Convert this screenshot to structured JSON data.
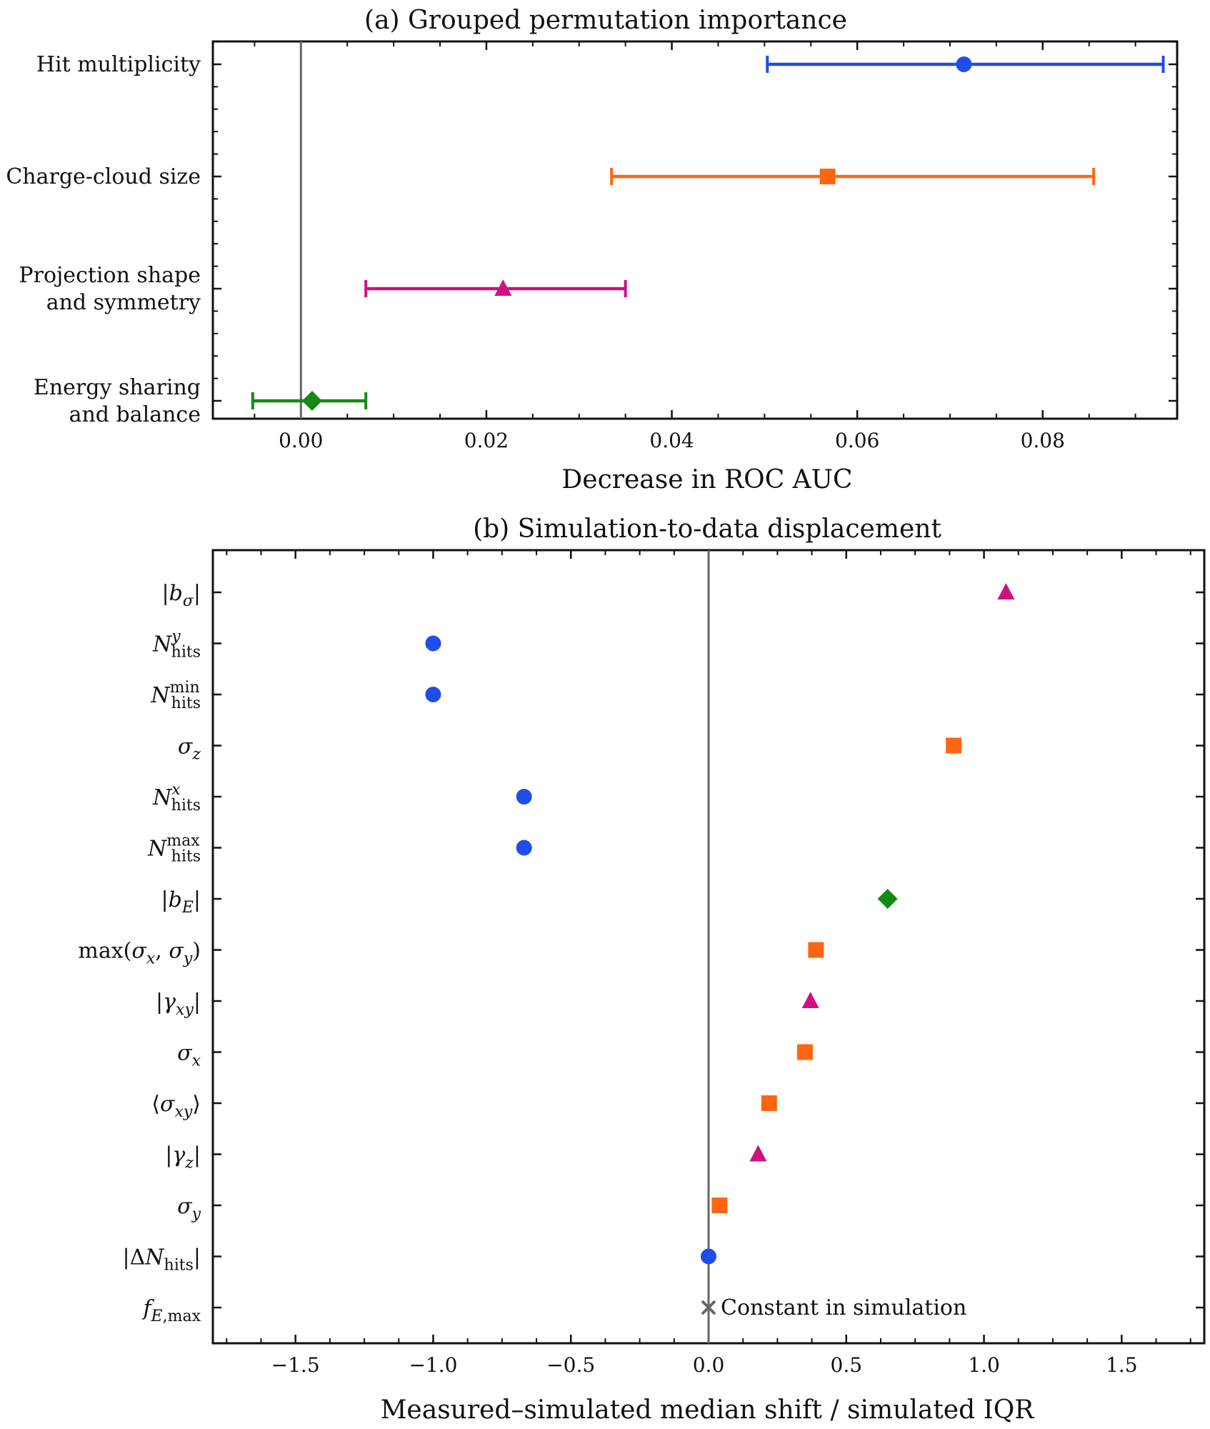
{
  "colors": {
    "hit_multiplicity": "#1f4de8",
    "charge_cloud_size": "#ff6611",
    "projection_shape": "#d1107f",
    "energy_sharing": "#148a14",
    "constant": "#666666",
    "zero_line": "#666666"
  },
  "chart_data": [
    {
      "type": "scatter",
      "title": "(a) Grouped permutation importance",
      "xlabel": "Decrease in ROC AUC",
      "ylabel": "",
      "xlim": [
        -0.0095,
        0.0945
      ],
      "xticks": [
        "0.00",
        "0.02",
        "0.04",
        "0.06",
        "0.08"
      ],
      "xtick_values": [
        0.0,
        0.02,
        0.04,
        0.06,
        0.08
      ],
      "grid": false,
      "legend": "none",
      "categories": [
        [
          "Hit multiplicity"
        ],
        [
          "Charge-cloud size"
        ],
        [
          "Projection shape",
          "and symmetry"
        ],
        [
          "Energy sharing",
          "and balance"
        ]
      ],
      "series": [
        {
          "group": "hit_multiplicity",
          "marker": "circle",
          "value": 0.0715,
          "err_low": 0.0503,
          "err_high": 0.093
        },
        {
          "group": "charge_cloud_size",
          "marker": "square",
          "value": 0.0568,
          "err_low": 0.0335,
          "err_high": 0.0855
        },
        {
          "group": "projection_shape",
          "marker": "triangle",
          "value": 0.0218,
          "err_low": 0.007,
          "err_high": 0.035
        },
        {
          "group": "energy_sharing",
          "marker": "diamond",
          "value": 0.0012,
          "err_low": -0.0052,
          "err_high": 0.007
        }
      ]
    },
    {
      "type": "scatter",
      "title": "(b) Simulation-to-data displacement",
      "xlabel": "Measured–simulated median shift / simulated IQR",
      "ylabel": "",
      "xlim": [
        -1.8,
        1.8
      ],
      "xticks": [
        "−1.5",
        "−1.0",
        "−0.5",
        "0.0",
        "0.5",
        "1.0",
        "1.5"
      ],
      "xtick_values": [
        -1.5,
        -1.0,
        -0.5,
        0.0,
        0.5,
        1.0,
        1.5
      ],
      "grid": false,
      "legend": "none",
      "points": [
        {
          "label": "|bσ|",
          "group": "projection_shape",
          "marker": "triangle",
          "value": 1.08
        },
        {
          "label": "N_hits^y",
          "group": "hit_multiplicity",
          "marker": "circle",
          "value": -1.0
        },
        {
          "label": "N_hits^min",
          "group": "hit_multiplicity",
          "marker": "circle",
          "value": -1.0
        },
        {
          "label": "σz",
          "group": "charge_cloud_size",
          "marker": "square",
          "value": 0.89
        },
        {
          "label": "N_hits^x",
          "group": "hit_multiplicity",
          "marker": "circle",
          "value": -0.67
        },
        {
          "label": "N_hits^max",
          "group": "hit_multiplicity",
          "marker": "circle",
          "value": -0.67
        },
        {
          "label": "|bE|",
          "group": "energy_sharing",
          "marker": "diamond",
          "value": 0.65
        },
        {
          "label": "max(σx, σy)",
          "group": "charge_cloud_size",
          "marker": "square",
          "value": 0.39
        },
        {
          "label": "|γxy|",
          "group": "projection_shape",
          "marker": "triangle",
          "value": 0.37
        },
        {
          "label": "σx",
          "group": "charge_cloud_size",
          "marker": "square",
          "value": 0.35
        },
        {
          "label": "⟨σxy⟩",
          "group": "charge_cloud_size",
          "marker": "square",
          "value": 0.22
        },
        {
          "label": "|γz|",
          "group": "projection_shape",
          "marker": "triangle",
          "value": 0.18
        },
        {
          "label": "σy",
          "group": "charge_cloud_size",
          "marker": "square",
          "value": 0.04
        },
        {
          "label": "|ΔN_hits|",
          "group": "hit_multiplicity",
          "marker": "circle",
          "value": 0.0
        },
        {
          "label": "f_E,max",
          "group": "constant",
          "marker": "x",
          "value": 0.0
        }
      ],
      "annotation": "Constant in simulation"
    }
  ]
}
